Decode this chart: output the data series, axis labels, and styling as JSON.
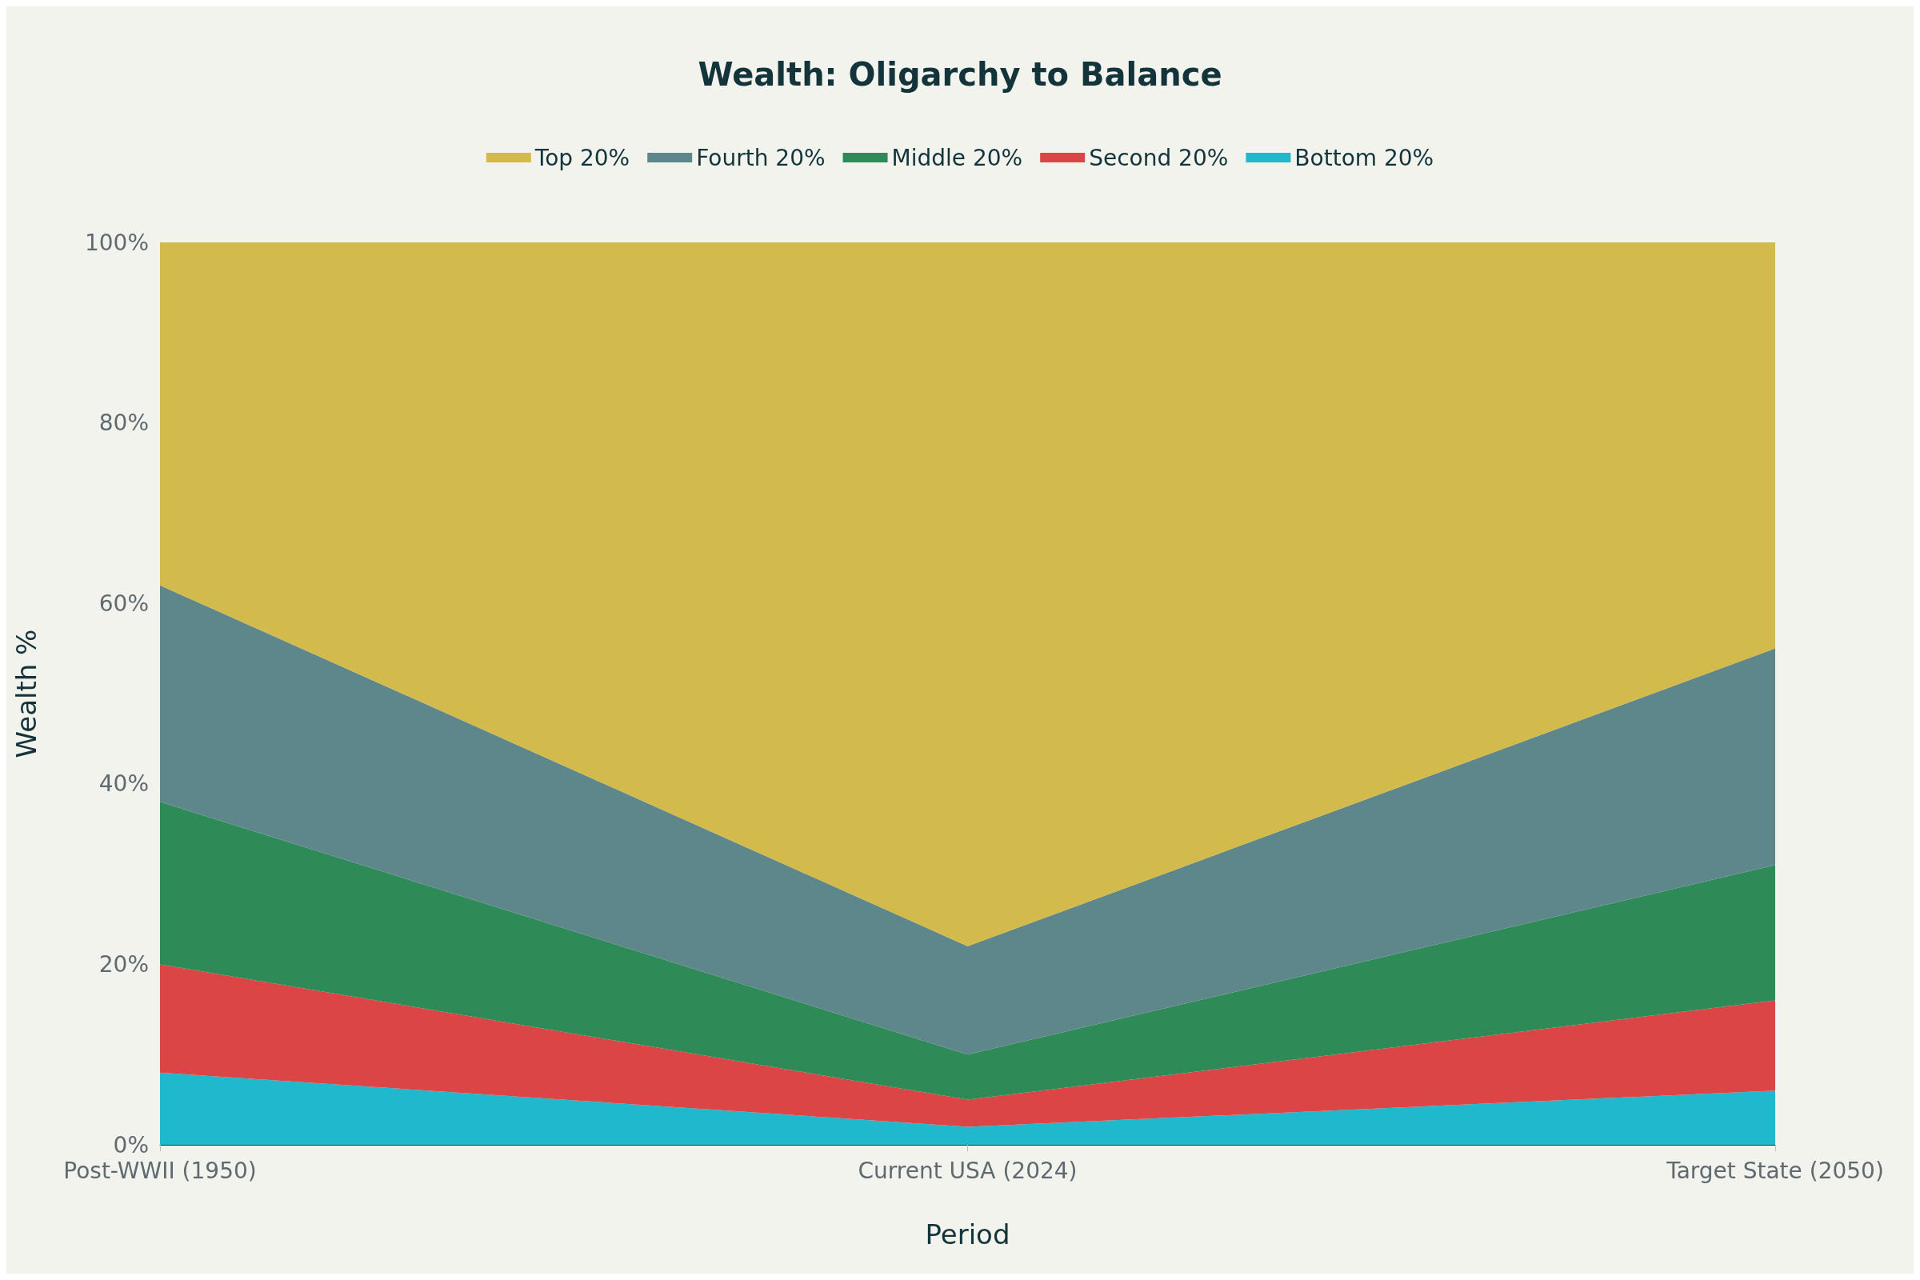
{
  "chart_data": {
    "type": "area",
    "stacked": true,
    "title": "Wealth: Oligarchy to Balance",
    "xlabel": "Period",
    "ylabel": "Wealth %",
    "categories": [
      "Post-WWII (1950)",
      "Current USA (2024)",
      "Target State (2050)"
    ],
    "series": [
      {
        "name": "Bottom 20%",
        "color": "#1fb8cd",
        "values": [
          8,
          2,
          6
        ]
      },
      {
        "name": "Second 20%",
        "color": "#db4545",
        "values": [
          12,
          3,
          10
        ]
      },
      {
        "name": "Middle 20%",
        "color": "#2e8b57",
        "values": [
          18,
          5,
          15
        ]
      },
      {
        "name": "Fourth 20%",
        "color": "#5e878c",
        "values": [
          24,
          12,
          24
        ]
      },
      {
        "name": "Top 20%",
        "color": "#d2ba4c",
        "values": [
          38,
          78,
          45
        ]
      }
    ],
    "ylim": [
      0,
      100
    ],
    "yticks": [
      {
        "value": 0,
        "label": "0%"
      },
      {
        "value": 20,
        "label": "20%"
      },
      {
        "value": 40,
        "label": "40%"
      },
      {
        "value": 60,
        "label": "60%"
      },
      {
        "value": 80,
        "label": "80%"
      },
      {
        "value": 100,
        "label": "100%"
      }
    ],
    "legend": "top",
    "grid": false,
    "marker": "none"
  }
}
